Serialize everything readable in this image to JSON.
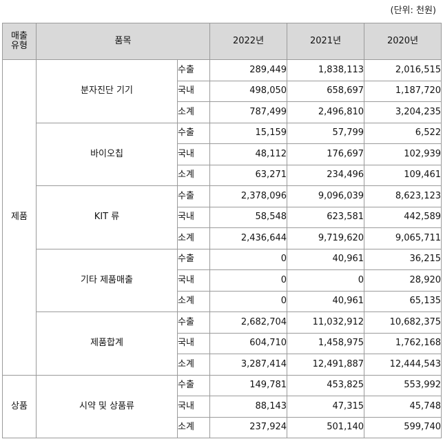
{
  "unit_label": "(단위: 천원)",
  "header": {
    "type_line1": "매출",
    "type_line2": "유형",
    "item": "품목",
    "years": [
      "2022년",
      "2021년",
      "2020년"
    ]
  },
  "types": [
    {
      "name": "제품",
      "items": [
        {
          "name": "분자진단 기기",
          "rows": [
            {
              "label": "수출",
              "values": [
                "289,449",
                "1,838,113",
                "2,016,515"
              ]
            },
            {
              "label": "국내",
              "values": [
                "498,050",
                "658,697",
                "1,187,720"
              ]
            },
            {
              "label": "소계",
              "values": [
                "787,499",
                "2,496,810",
                "3,204,235"
              ]
            }
          ]
        },
        {
          "name": "바이오칩",
          "rows": [
            {
              "label": "수출",
              "values": [
                "15,159",
                "57,799",
                "6,522"
              ]
            },
            {
              "label": "국내",
              "values": [
                "48,112",
                "176,697",
                "102,939"
              ]
            },
            {
              "label": "소계",
              "values": [
                "63,271",
                "234,496",
                "109,461"
              ]
            }
          ]
        },
        {
          "name": "KIT 류",
          "rows": [
            {
              "label": "수출",
              "values": [
                "2,378,096",
                "9,096,039",
                "8,623,123"
              ]
            },
            {
              "label": "국내",
              "values": [
                "58,548",
                "623,581",
                "442,589"
              ]
            },
            {
              "label": "소계",
              "values": [
                "2,436,644",
                "9,719,620",
                "9,065,711"
              ]
            }
          ]
        },
        {
          "name": "기타 제품매출",
          "rows": [
            {
              "label": "수출",
              "values": [
                "0",
                "40,961",
                "36,215"
              ]
            },
            {
              "label": "국내",
              "values": [
                "0",
                "0",
                "28,920"
              ]
            },
            {
              "label": "소계",
              "values": [
                "0",
                "40,961",
                "65,135"
              ]
            }
          ]
        },
        {
          "name": "제품합계",
          "rows": [
            {
              "label": "수출",
              "values": [
                "2,682,704",
                "11,032,912",
                "10,682,375"
              ]
            },
            {
              "label": "국내",
              "values": [
                "604,710",
                "1,458,975",
                "1,762,168"
              ]
            },
            {
              "label": "소계",
              "values": [
                "3,287,414",
                "12,491,887",
                "12,444,543"
              ]
            }
          ]
        }
      ]
    },
    {
      "name": "상품",
      "items": [
        {
          "name": "시약 및 상품류",
          "rows": [
            {
              "label": "수출",
              "values": [
                "149,781",
                "453,825",
                "553,992"
              ]
            },
            {
              "label": "국내",
              "values": [
                "88,143",
                "47,315",
                "45,748"
              ]
            },
            {
              "label": "소계",
              "values": [
                "237,924",
                "501,140",
                "599,740"
              ]
            }
          ]
        }
      ]
    }
  ]
}
